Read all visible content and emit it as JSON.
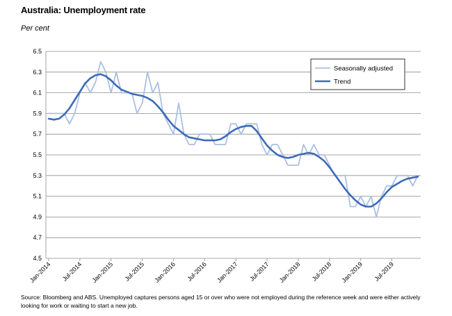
{
  "title": "Australia: Unemployment rate",
  "subtitle": "Per cent",
  "source": "Source: Bloomberg and ABS.  Unemployed captures persons aged 15 or over who were not employed during the reference week and were either actively looking for work or waiting to start a new job.",
  "chart_data": {
    "type": "line",
    "title": "Australia: Unemployment rate",
    "ylabel": "Per cent",
    "xlabel": "",
    "ylim": [
      4.5,
      6.5
    ],
    "yticks": [
      4.5,
      4.7,
      4.9,
      5.1,
      5.3,
      5.5,
      5.7,
      5.9,
      6.1,
      6.3,
      6.5
    ],
    "xtick_labels": [
      "Jan-2014",
      "Jul-2014",
      "Jan-2015",
      "Jul-2015",
      "Jan-2016",
      "Jul-2016",
      "Jan-2017",
      "Jul-2017",
      "Jan-2018",
      "Jul-2018",
      "Jan-2019",
      "Jul-2019"
    ],
    "x_start": "Jan-2014",
    "x_end": "Nov-2019",
    "grid": "horizontal",
    "legend_position": "top-right",
    "series": [
      {
        "name": "Seasonally adjusted",
        "color": "#a9bfe2",
        "values": [
          5.9,
          5.9,
          5.9,
          5.9,
          5.8,
          5.9,
          6.1,
          6.2,
          6.1,
          6.2,
          6.4,
          6.3,
          6.1,
          6.3,
          6.1,
          6.1,
          6.1,
          5.9,
          6.0,
          6.3,
          6.1,
          6.2,
          5.9,
          5.8,
          5.7,
          6.0,
          5.7,
          5.6,
          5.6,
          5.7,
          5.7,
          5.7,
          5.6,
          5.6,
          5.6,
          5.8,
          5.8,
          5.7,
          5.8,
          5.8,
          5.8,
          5.6,
          5.5,
          5.6,
          5.6,
          5.5,
          5.4,
          5.4,
          5.4,
          5.6,
          5.5,
          5.6,
          5.5,
          5.5,
          5.4,
          5.3,
          5.3,
          5.3,
          5.0,
          5.0,
          5.1,
          5.0,
          5.1,
          4.9,
          5.1,
          5.2,
          5.2,
          5.3,
          5.3,
          5.3,
          5.2,
          5.3
        ]
      },
      {
        "name": "Trend",
        "color": "#3d6ab8",
        "values": [
          5.85,
          5.84,
          5.85,
          5.89,
          5.95,
          6.03,
          6.11,
          6.19,
          6.24,
          6.27,
          6.28,
          6.26,
          6.22,
          6.17,
          6.13,
          6.11,
          6.09,
          6.08,
          6.07,
          6.05,
          6.02,
          5.97,
          5.91,
          5.84,
          5.78,
          5.74,
          5.7,
          5.67,
          5.66,
          5.65,
          5.64,
          5.64,
          5.64,
          5.65,
          5.68,
          5.72,
          5.75,
          5.77,
          5.78,
          5.78,
          5.73,
          5.66,
          5.59,
          5.54,
          5.5,
          5.48,
          5.47,
          5.48,
          5.5,
          5.51,
          5.52,
          5.51,
          5.48,
          5.44,
          5.38,
          5.31,
          5.24,
          5.17,
          5.11,
          5.06,
          5.02,
          5.0,
          5.0,
          5.03,
          5.08,
          5.14,
          5.19,
          5.22,
          5.25,
          5.27,
          5.28,
          5.29
        ]
      }
    ]
  }
}
